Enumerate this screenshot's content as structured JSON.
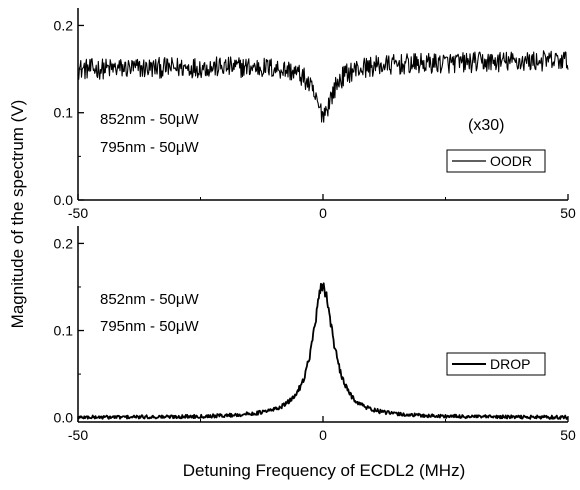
{
  "figure": {
    "ylabel": "Magnitude of the spectrum (V)",
    "xlabel": "Detuning Frequency of ECDL2  (MHz)"
  },
  "chart_data": [
    {
      "type": "line",
      "panel": "top",
      "xlim": [
        -50,
        50
      ],
      "ylim": [
        0,
        0.22
      ],
      "x_ticks": [
        "-50",
        "0",
        "50"
      ],
      "y_ticks": [
        "0.0",
        "0.1",
        "0.2"
      ],
      "annotations": [
        "852nm - 50μW",
        "795nm - 50μW"
      ],
      "scale_note": "(x30)",
      "legend_position": "lower-right",
      "series": [
        {
          "name": "OODR",
          "baseline": 0.155,
          "dip_depth": 0.055,
          "dip_center": 0,
          "dip_width_mhz": 2.4,
          "noise_amplitude": 0.012,
          "points": [
            [
              -50,
              0.152
            ],
            [
              -40,
              0.158
            ],
            [
              -30,
              0.155
            ],
            [
              -20,
              0.156
            ],
            [
              -10,
              0.154
            ],
            [
              -5,
              0.146
            ],
            [
              -3,
              0.128
            ],
            [
              -1,
              0.105
            ],
            [
              0,
              0.098
            ],
            [
              1,
              0.104
            ],
            [
              3,
              0.124
            ],
            [
              5,
              0.142
            ],
            [
              10,
              0.153
            ],
            [
              20,
              0.157
            ],
            [
              30,
              0.158
            ],
            [
              40,
              0.158
            ],
            [
              50,
              0.16
            ]
          ]
        }
      ]
    },
    {
      "type": "line",
      "panel": "bottom",
      "xlim": [
        -50,
        50
      ],
      "ylim": [
        -0.005,
        0.22
      ],
      "x_ticks": [
        "-50",
        "0",
        "50"
      ],
      "y_ticks": [
        "0.0",
        "0.1",
        "0.2"
      ],
      "annotations": [
        "852nm - 50μW",
        "795nm - 50μW"
      ],
      "legend_position": "lower-right",
      "series": [
        {
          "name": "DROP",
          "baseline": 0.0,
          "peak_height": 0.15,
          "peak_center": 0,
          "peak_width_mhz": 2.6,
          "noise_amplitude": 0.002,
          "points": [
            [
              -50,
              0.0
            ],
            [
              -40,
              0.0
            ],
            [
              -30,
              0.001
            ],
            [
              -20,
              0.004
            ],
            [
              -10,
              0.012
            ],
            [
              -5,
              0.03
            ],
            [
              -3,
              0.052
            ],
            [
              -2,
              0.072
            ],
            [
              -1,
              0.108
            ],
            [
              0,
              0.15
            ],
            [
              1,
              0.11
            ],
            [
              2,
              0.074
            ],
            [
              3,
              0.054
            ],
            [
              5,
              0.03
            ],
            [
              10,
              0.01
            ],
            [
              20,
              0.003
            ],
            [
              30,
              0.001
            ],
            [
              40,
              0.0
            ],
            [
              50,
              0.0
            ]
          ]
        }
      ]
    }
  ]
}
